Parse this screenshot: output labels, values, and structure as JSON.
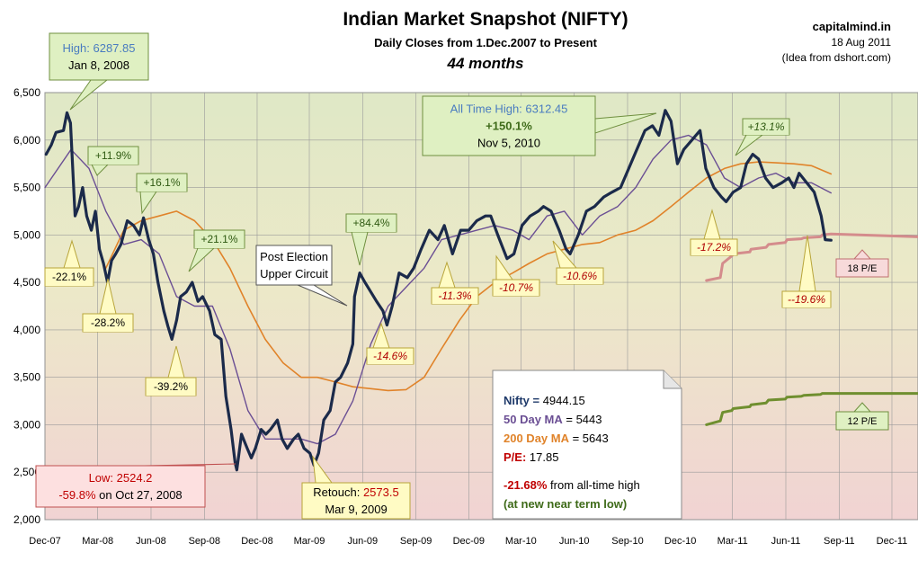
{
  "header": {
    "title": "Indian Market Snapshot (NIFTY)",
    "subtitle": "Daily Closes from 1.Dec.2007 to Present",
    "duration": "44 months"
  },
  "source": {
    "site": "capitalmind.in",
    "date": "18 Aug 2011",
    "credit": "(Idea from dshort.com)"
  },
  "chart_data": {
    "type": "line",
    "title": "Indian Market Snapshot (NIFTY)",
    "xlabel": "",
    "ylabel": "",
    "ylim": [
      2000,
      6500
    ],
    "xlim": [
      "2007-12-01",
      "2012-01-15"
    ],
    "grid": true,
    "y_ticks": [
      2000,
      2500,
      3000,
      3500,
      4000,
      4500,
      5000,
      5500,
      6000,
      6500
    ],
    "y_tick_labels": [
      "2,000",
      "2,500",
      "3,000",
      "3,500",
      "4,000",
      "4,500",
      "5,000",
      "5,500",
      "6,000",
      "6,500"
    ],
    "x_ticks": [
      "2007-12-01",
      "2008-03-01",
      "2008-06-01",
      "2008-09-01",
      "2008-12-01",
      "2009-03-01",
      "2009-06-01",
      "2009-09-01",
      "2009-12-01",
      "2010-03-01",
      "2010-06-01",
      "2010-09-01",
      "2010-12-01",
      "2011-03-01",
      "2011-06-01",
      "2011-09-01",
      "2011-12-01"
    ],
    "x_tick_labels": [
      "Dec-07",
      "Mar-08",
      "Jun-08",
      "Sep-08",
      "Dec-08",
      "Mar-09",
      "Jun-09",
      "Sep-09",
      "Dec-09",
      "Mar-10",
      "Jun-10",
      "Sep-10",
      "Dec-10",
      "Mar-11",
      "Jun-11",
      "Sep-11",
      "Dec-11"
    ],
    "colors": {
      "nifty": "#1b2a4a",
      "ma50": "#6b4f94",
      "ma200": "#e0832a",
      "pe18": "#d48c8c",
      "pe12": "#6f8f2f",
      "bg_top": "#dfe8c6",
      "bg_bottom": "#f1d3d3"
    },
    "series": [
      {
        "key": "nifty",
        "x": [
          "2007-12-03",
          "2007-12-12",
          "2007-12-20",
          "2008-01-02",
          "2008-01-08",
          "2008-01-14",
          "2008-01-22",
          "2008-01-28",
          "2008-02-04",
          "2008-02-11",
          "2008-02-19",
          "2008-02-26",
          "2008-03-04",
          "2008-03-11",
          "2008-03-18",
          "2008-03-25",
          "2008-04-01",
          "2008-04-10",
          "2008-04-21",
          "2008-05-02",
          "2008-05-12",
          "2008-05-19",
          "2008-05-28",
          "2008-06-05",
          "2008-06-13",
          "2008-06-23",
          "2008-06-30",
          "2008-07-07",
          "2008-07-15",
          "2008-07-22",
          "2008-08-01",
          "2008-08-11",
          "2008-08-21",
          "2008-08-29",
          "2008-09-10",
          "2008-09-19",
          "2008-09-30",
          "2008-10-08",
          "2008-10-17",
          "2008-10-24",
          "2008-10-27",
          "2008-11-04",
          "2008-11-14",
          "2008-11-21",
          "2008-11-28",
          "2008-12-08",
          "2008-12-16",
          "2008-12-24",
          "2009-01-05",
          "2009-01-13",
          "2009-01-22",
          "2009-02-02",
          "2009-02-10",
          "2009-02-20",
          "2009-03-02",
          "2009-03-09",
          "2009-03-17",
          "2009-03-26",
          "2009-04-06",
          "2009-04-15",
          "2009-04-24",
          "2009-05-06",
          "2009-05-15",
          "2009-05-18",
          "2009-05-27",
          "2009-06-05",
          "2009-06-15",
          "2009-06-25",
          "2009-07-06",
          "2009-07-13",
          "2009-07-22",
          "2009-08-03",
          "2009-08-17",
          "2009-08-28",
          "2009-09-10",
          "2009-09-24",
          "2009-10-09",
          "2009-10-20",
          "2009-11-03",
          "2009-11-17",
          "2009-12-01",
          "2009-12-15",
          "2009-12-30",
          "2010-01-08",
          "2010-01-20",
          "2010-02-05",
          "2010-02-17",
          "2010-03-03",
          "2010-03-17",
          "2010-03-31",
          "2010-04-09",
          "2010-04-22",
          "2010-05-06",
          "2010-05-18",
          "2010-05-25",
          "2010-06-08",
          "2010-06-22",
          "2010-07-06",
          "2010-07-22",
          "2010-08-05",
          "2010-08-20",
          "2010-09-03",
          "2010-09-17",
          "2010-10-01",
          "2010-10-14",
          "2010-10-25",
          "2010-11-05",
          "2010-11-15",
          "2010-11-26",
          "2010-12-07",
          "2010-12-21",
          "2011-01-04",
          "2011-01-14",
          "2011-01-28",
          "2011-02-10",
          "2011-02-18",
          "2011-03-02",
          "2011-03-15",
          "2011-03-25",
          "2011-04-05",
          "2011-04-15",
          "2011-04-27",
          "2011-05-10",
          "2011-05-25",
          "2011-06-06",
          "2011-06-15",
          "2011-06-24",
          "2011-07-07",
          "2011-07-20",
          "2011-08-01",
          "2011-08-08",
          "2011-08-18"
        ],
        "y": [
          5850,
          5950,
          6080,
          6100,
          6287.85,
          6180,
          5200,
          5300,
          5500,
          5200,
          5050,
          5250,
          4850,
          4700,
          4500,
          4730,
          4800,
          4900,
          5150,
          5100,
          5000,
          5180,
          4950,
          4800,
          4500,
          4200,
          4040,
          3900,
          4100,
          4350,
          4400,
          4500,
          4300,
          4350,
          4200,
          3950,
          3900,
          3300,
          2950,
          2600,
          2524.2,
          2900,
          2750,
          2650,
          2750,
          2950,
          2900,
          2950,
          3050,
          2850,
          2750,
          2850,
          2900,
          2750,
          2700,
          2573.5,
          2700,
          3050,
          3150,
          3450,
          3500,
          3650,
          3850,
          4350,
          4600,
          4500,
          4400,
          4300,
          4200,
          4050,
          4250,
          4600,
          4550,
          4650,
          4850,
          5050,
          4950,
          5100,
          4800,
          5050,
          5050,
          5150,
          5200,
          5200,
          5000,
          4750,
          4800,
          5100,
          5200,
          5250,
          5300,
          5250,
          5050,
          4850,
          4800,
          5000,
          5250,
          5300,
          5400,
          5450,
          5500,
          5700,
          5900,
          6100,
          6150,
          6050,
          6312.45,
          6200,
          5750,
          5900,
          6000,
          6100,
          5700,
          5500,
          5400,
          5350,
          5450,
          5500,
          5750,
          5850,
          5800,
          5600,
          5500,
          5550,
          5600,
          5500,
          5650,
          5550,
          5450,
          5200,
          4950,
          4944.15
        ]
      },
      {
        "key": "ma50",
        "x": [
          "2007-12-01",
          "2008-01-15",
          "2008-02-15",
          "2008-03-15",
          "2008-04-15",
          "2008-05-15",
          "2008-06-15",
          "2008-07-15",
          "2008-08-15",
          "2008-09-15",
          "2008-10-15",
          "2008-11-15",
          "2008-12-15",
          "2009-01-15",
          "2009-02-15",
          "2009-03-15",
          "2009-04-15",
          "2009-05-15",
          "2009-06-15",
          "2009-07-15",
          "2009-08-15",
          "2009-09-15",
          "2009-10-15",
          "2009-11-15",
          "2009-12-15",
          "2010-01-15",
          "2010-02-15",
          "2010-03-15",
          "2010-04-15",
          "2010-05-15",
          "2010-06-15",
          "2010-07-15",
          "2010-08-15",
          "2010-09-15",
          "2010-10-15",
          "2010-11-15",
          "2010-12-15",
          "2011-01-15",
          "2011-02-15",
          "2011-03-15",
          "2011-04-15",
          "2011-05-15",
          "2011-06-15",
          "2011-07-15",
          "2011-08-18"
        ],
        "y": [
          5500,
          5900,
          5700,
          5250,
          4900,
          4950,
          4800,
          4350,
          4250,
          4250,
          3800,
          3150,
          2850,
          2850,
          2850,
          2800,
          2900,
          3250,
          3850,
          4250,
          4450,
          4650,
          4950,
          5000,
          5050,
          5100,
          5050,
          4950,
          5200,
          5250,
          5000,
          5200,
          5300,
          5500,
          5800,
          6000,
          6050,
          5950,
          5600,
          5500,
          5600,
          5650,
          5550,
          5550,
          5443
        ]
      },
      {
        "key": "ma200",
        "x": [
          "2008-03-15",
          "2008-04-15",
          "2008-05-15",
          "2008-06-15",
          "2008-07-15",
          "2008-08-15",
          "2008-09-15",
          "2008-10-15",
          "2008-11-15",
          "2008-12-15",
          "2009-01-15",
          "2009-02-15",
          "2009-03-15",
          "2009-04-15",
          "2009-05-15",
          "2009-06-15",
          "2009-07-15",
          "2009-08-15",
          "2009-09-15",
          "2009-10-15",
          "2009-11-15",
          "2009-12-15",
          "2010-01-15",
          "2010-02-15",
          "2010-03-15",
          "2010-04-15",
          "2010-05-15",
          "2010-06-15",
          "2010-07-15",
          "2010-08-15",
          "2010-09-15",
          "2010-10-15",
          "2010-11-15",
          "2010-12-15",
          "2011-01-15",
          "2011-02-15",
          "2011-03-15",
          "2011-04-15",
          "2011-05-15",
          "2011-06-15",
          "2011-07-15",
          "2011-08-18"
        ],
        "y": [
          4650,
          5050,
          5150,
          5200,
          5250,
          5150,
          4950,
          4650,
          4250,
          3900,
          3650,
          3500,
          3500,
          3450,
          3400,
          3380,
          3360,
          3370,
          3500,
          3800,
          4100,
          4350,
          4500,
          4600,
          4700,
          4800,
          4850,
          4900,
          4920,
          5000,
          5050,
          5150,
          5300,
          5450,
          5600,
          5700,
          5750,
          5770,
          5760,
          5750,
          5730,
          5643
        ]
      },
      {
        "key": "pe18",
        "name": "18 P/E",
        "x": [
          "2011-01-15",
          "2011-02-08",
          "2011-02-12",
          "2011-02-28",
          "2011-03-02",
          "2011-03-31",
          "2011-04-02",
          "2011-04-28",
          "2011-05-02",
          "2011-05-31",
          "2011-06-03",
          "2011-06-28",
          "2011-07-02",
          "2011-07-31",
          "2011-08-03",
          "2011-08-18",
          "2012-01-15"
        ],
        "y": [
          4520,
          4550,
          4700,
          4780,
          4800,
          4820,
          4850,
          4870,
          4900,
          4920,
          4950,
          4960,
          4970,
          4980,
          5000,
          5010,
          4980
        ]
      },
      {
        "key": "pe12",
        "name": "12 P/E",
        "x": [
          "2011-01-15",
          "2011-02-08",
          "2011-02-12",
          "2011-02-28",
          "2011-03-02",
          "2011-03-31",
          "2011-04-02",
          "2011-04-28",
          "2011-05-02",
          "2011-05-31",
          "2011-06-03",
          "2011-06-28",
          "2011-07-02",
          "2011-07-31",
          "2011-08-03",
          "2011-08-18",
          "2012-01-15"
        ],
        "y": [
          3000,
          3040,
          3130,
          3150,
          3170,
          3190,
          3210,
          3230,
          3260,
          3270,
          3290,
          3300,
          3310,
          3320,
          3330,
          3330,
          3330
        ]
      }
    ],
    "callouts": [
      {
        "key": "high",
        "lines": [
          {
            "parts": [
              {
                "text": "High: ",
                "color": "#4a7cc0"
              },
              {
                "text": "6287.85",
                "color": "#4a7cc0"
              }
            ]
          },
          {
            "parts": [
              {
                "text": "Jan 8, 2008",
                "color": "#000"
              }
            ]
          }
        ],
        "style": "green"
      },
      {
        "key": "ath",
        "lines": [
          {
            "parts": [
              {
                "text": "All Time High: 6312.45",
                "color": "#4a7cc0"
              }
            ]
          },
          {
            "parts": [
              {
                "text": "+150.1%",
                "color": "#3f6b1a",
                "bold": true
              }
            ]
          },
          {
            "parts": [
              {
                "text": "Nov 5, 2010",
                "color": "#000"
              }
            ]
          }
        ],
        "style": "green"
      },
      {
        "key": "low",
        "lines": [
          {
            "parts": [
              {
                "text": "Low:  2524.2",
                "color": "#c00000"
              }
            ]
          },
          {
            "parts": [
              {
                "text": "-59.8%",
                "color": "#c00000"
              },
              {
                "text": " on Oct 27, 2008",
                "color": "#000"
              }
            ]
          }
        ],
        "style": "red"
      },
      {
        "key": "retouch",
        "lines": [
          {
            "parts": [
              {
                "text": "Retouch: ",
                "color": "#000"
              },
              {
                "text": "2573.5",
                "color": "#c00000"
              }
            ]
          },
          {
            "parts": [
              {
                "text": "Mar 9, 2009",
                "color": "#000"
              }
            ]
          }
        ],
        "style": "yellow"
      },
      {
        "key": "post",
        "lines": [
          {
            "parts": [
              {
                "text": "Post Election",
                "color": "#000"
              }
            ]
          },
          {
            "parts": [
              {
                "text": "Upper Circuit",
                "color": "#000"
              }
            ]
          }
        ],
        "style": "white"
      }
    ],
    "tags": [
      {
        "key": "t1",
        "text": "+11.9%",
        "style": "green"
      },
      {
        "key": "t2",
        "text": "+16.1%",
        "style": "green"
      },
      {
        "key": "t3",
        "text": "+21.1%",
        "style": "green"
      },
      {
        "key": "t4",
        "text": "+84.4%",
        "style": "green"
      },
      {
        "key": "t5",
        "text": "+13.1%",
        "style": "green-italic"
      },
      {
        "key": "t6",
        "text": "-22.1%",
        "style": "yellow"
      },
      {
        "key": "t7",
        "text": "-28.2%",
        "style": "yellow"
      },
      {
        "key": "t8",
        "text": "-39.2%",
        "style": "yellow"
      },
      {
        "key": "t9",
        "text": "-14.6%",
        "style": "yellow-italic"
      },
      {
        "key": "t10",
        "text": "-11.3%",
        "style": "yellow-italic"
      },
      {
        "key": "t11",
        "text": "-10.7%",
        "style": "yellow-italic"
      },
      {
        "key": "t12",
        "text": "-10.6%",
        "style": "yellow-italic"
      },
      {
        "key": "t13",
        "text": "-17.2%",
        "style": "yellow-italic"
      },
      {
        "key": "t14",
        "text": "--19.6%",
        "style": "yellow-italic"
      }
    ],
    "pe_labels": [
      {
        "key": "pe18",
        "text": "18 P/E"
      },
      {
        "key": "pe12",
        "text": "12 P/E"
      }
    ],
    "stats": {
      "nifty_label": "Nifty =",
      "nifty_value": "4944.15",
      "ma50_label": "50 Day MA",
      "ma50_value": "= 5443",
      "ma200_label": "200 Day MA",
      "ma200_value": "= 5643",
      "pe_label": "P/E:",
      "pe_value": "17.85",
      "drawdown_pct": "-21.68%",
      "drawdown_text": " from all-time high",
      "note": "(at new near term low)"
    }
  }
}
